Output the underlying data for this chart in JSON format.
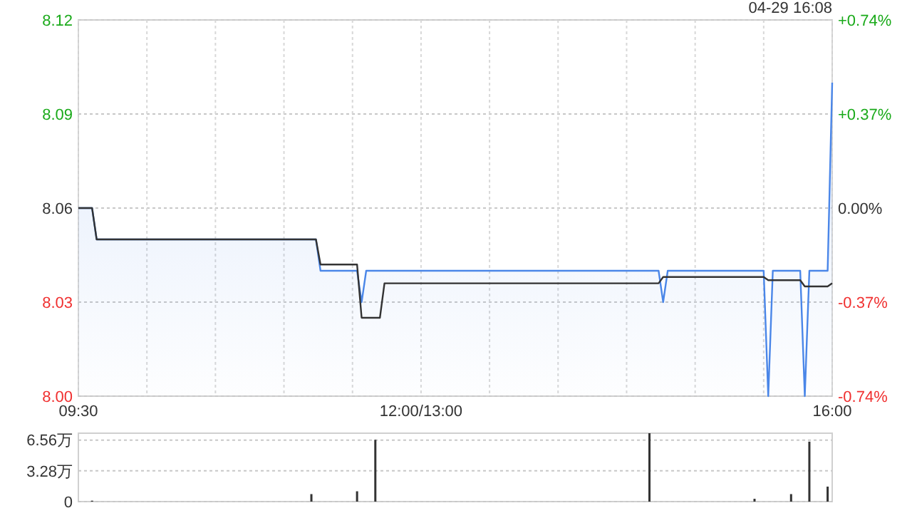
{
  "chart_data": [
    {
      "type": "line",
      "annotations": [
        "04-29 16:08"
      ],
      "grid": true,
      "categories": [
        "09:30",
        null,
        null,
        null,
        null,
        null,
        null,
        null,
        null,
        null,
        null,
        null,
        null,
        null,
        null,
        null,
        null,
        null,
        null,
        null,
        null,
        null,
        null,
        null,
        null,
        null,
        null,
        null,
        null,
        null,
        null,
        null,
        null,
        null,
        null,
        null,
        null,
        null,
        null,
        null,
        null,
        null,
        null,
        null,
        null,
        null,
        null,
        null,
        null,
        null,
        null,
        null,
        null,
        null,
        null,
        null,
        null,
        null,
        null,
        null,
        null,
        null,
        null,
        null,
        null,
        null,
        null,
        null,
        null,
        null,
        null,
        null,
        null,
        null,
        null,
        "12:00/13:00",
        null,
        null,
        null,
        null,
        null,
        null,
        null,
        null,
        null,
        null,
        null,
        null,
        null,
        null,
        null,
        null,
        null,
        null,
        null,
        null,
        null,
        null,
        null,
        null,
        null,
        null,
        null,
        null,
        null,
        null,
        null,
        null,
        null,
        null,
        null,
        null,
        null,
        null,
        null,
        null,
        null,
        null,
        null,
        null,
        null,
        null,
        null,
        null,
        null,
        null,
        null,
        null,
        null,
        null,
        null,
        null,
        null,
        null,
        null,
        null,
        null,
        null,
        null,
        null,
        null,
        null,
        null,
        null,
        null,
        null,
        null,
        null,
        null,
        null,
        null,
        null,
        null,
        null,
        null,
        null,
        null,
        null,
        null,
        null,
        null,
        null,
        null,
        null,
        null,
        "16:00"
      ],
      "ylim": [
        8.0,
        8.12
      ],
      "yticks": [
        {
          "value": 8.0,
          "label": "8.00"
        },
        8.03,
        8.06,
        8.09,
        8.12
      ],
      "y2lim": [
        -0.74,
        0.74
      ],
      "y2ticks": [
        {
          "value": -0.74,
          "label": "-0.74%"
        },
        {
          "value": -0.37,
          "label": "-0.37%"
        },
        {
          "value": 0,
          "label": "0.00%"
        },
        {
          "value": 0.37,
          "label": "+0.37%"
        },
        {
          "value": 0.74,
          "label": "+0.74%"
        }
      ],
      "series": [
        {
          "type": "area",
          "color": "#4a86e8",
          "values": [
            8.06,
            8.06,
            8.06,
            8.06,
            8.05,
            8.05,
            8.05,
            8.05,
            8.05,
            8.05,
            8.05,
            8.05,
            8.05,
            8.05,
            8.05,
            8.05,
            8.05,
            8.05,
            8.05,
            8.05,
            8.05,
            8.05,
            8.05,
            8.05,
            8.05,
            8.05,
            8.05,
            8.05,
            8.05,
            8.05,
            8.05,
            8.05,
            8.05,
            8.05,
            8.05,
            8.05,
            8.05,
            8.05,
            8.05,
            8.05,
            8.05,
            8.05,
            8.05,
            8.05,
            8.05,
            8.05,
            8.05,
            8.05,
            8.05,
            8.05,
            8.05,
            8.05,
            8.05,
            8.04,
            8.04,
            8.04,
            8.04,
            8.04,
            8.04,
            8.04,
            8.04,
            8.04,
            8.03,
            8.04,
            8.04,
            8.04,
            8.04,
            8.04,
            8.04,
            8.04,
            8.04,
            8.04,
            8.04,
            8.04,
            8.04,
            8.04,
            8.04,
            8.04,
            8.04,
            8.04,
            8.04,
            8.04,
            8.04,
            8.04,
            8.04,
            8.04,
            8.04,
            8.04,
            8.04,
            8.04,
            8.04,
            8.04,
            8.04,
            8.04,
            8.04,
            8.04,
            8.04,
            8.04,
            8.04,
            8.04,
            8.04,
            8.04,
            8.04,
            8.04,
            8.04,
            8.04,
            8.04,
            8.04,
            8.04,
            8.04,
            8.04,
            8.04,
            8.04,
            8.04,
            8.04,
            8.04,
            8.04,
            8.04,
            8.04,
            8.04,
            8.04,
            8.04,
            8.04,
            8.04,
            8.04,
            8.04,
            8.04,
            8.04,
            8.03,
            8.04,
            8.04,
            8.04,
            8.04,
            8.04,
            8.04,
            8.04,
            8.04,
            8.04,
            8.04,
            8.04,
            8.04,
            8.04,
            8.04,
            8.04,
            8.04,
            8.04,
            8.04,
            8.04,
            8.04,
            8.04,
            8.04,
            8.0,
            8.04,
            8.04,
            8.04,
            8.04,
            8.04,
            8.04,
            8.04,
            8.0,
            8.04,
            8.04,
            8.04,
            8.04,
            8.04,
            8.1
          ]
        },
        {
          "color": "#333333",
          "values": [
            8.06,
            8.06,
            8.06,
            8.06,
            8.05,
            8.05,
            8.05,
            8.05,
            8.05,
            8.05,
            8.05,
            8.05,
            8.05,
            8.05,
            8.05,
            8.05,
            8.05,
            8.05,
            8.05,
            8.05,
            8.05,
            8.05,
            8.05,
            8.05,
            8.05,
            8.05,
            8.05,
            8.05,
            8.05,
            8.05,
            8.05,
            8.05,
            8.05,
            8.05,
            8.05,
            8.05,
            8.05,
            8.05,
            8.05,
            8.05,
            8.05,
            8.05,
            8.05,
            8.05,
            8.05,
            8.05,
            8.05,
            8.05,
            8.05,
            8.05,
            8.05,
            8.05,
            8.05,
            8.042,
            8.042,
            8.042,
            8.042,
            8.042,
            8.042,
            8.042,
            8.042,
            8.042,
            8.025,
            8.025,
            8.025,
            8.025,
            8.025,
            8.036,
            8.036,
            8.036,
            8.036,
            8.036,
            8.036,
            8.036,
            8.036,
            8.036,
            8.036,
            8.036,
            8.036,
            8.036,
            8.036,
            8.036,
            8.036,
            8.036,
            8.036,
            8.036,
            8.036,
            8.036,
            8.036,
            8.036,
            8.036,
            8.036,
            8.036,
            8.036,
            8.036,
            8.036,
            8.036,
            8.036,
            8.036,
            8.036,
            8.036,
            8.036,
            8.036,
            8.036,
            8.036,
            8.036,
            8.036,
            8.036,
            8.036,
            8.036,
            8.036,
            8.036,
            8.036,
            8.036,
            8.036,
            8.036,
            8.036,
            8.036,
            8.036,
            8.036,
            8.036,
            8.036,
            8.036,
            8.036,
            8.036,
            8.036,
            8.036,
            8.036,
            8.038,
            8.038,
            8.038,
            8.038,
            8.038,
            8.038,
            8.038,
            8.038,
            8.038,
            8.038,
            8.038,
            8.038,
            8.038,
            8.038,
            8.038,
            8.038,
            8.038,
            8.038,
            8.038,
            8.038,
            8.038,
            8.038,
            8.038,
            8.037,
            8.037,
            8.037,
            8.037,
            8.037,
            8.037,
            8.037,
            8.037,
            8.035,
            8.035,
            8.035,
            8.035,
            8.035,
            8.035,
            8.036
          ]
        }
      ]
    },
    {
      "type": "bar",
      "grid": "y",
      "tick_labels": "y",
      "color": "#333333",
      "categories": [
        null,
        null,
        null,
        null,
        null,
        null,
        null,
        null,
        null,
        null,
        null,
        null,
        null,
        null,
        null,
        null,
        null,
        null,
        null,
        null,
        null,
        null,
        null,
        null,
        null,
        null,
        null,
        null,
        null,
        null,
        null,
        null,
        null,
        null,
        null,
        null,
        null,
        null,
        null,
        null,
        null,
        null,
        null,
        null,
        null,
        null,
        null,
        null,
        null,
        null,
        null,
        null,
        null,
        null,
        null,
        null,
        null,
        null,
        null,
        null,
        null,
        null,
        null,
        null,
        null,
        null,
        null,
        null,
        null,
        null,
        null,
        null,
        null,
        null,
        null,
        null,
        null,
        null,
        null,
        null,
        null,
        null,
        null,
        null,
        null,
        null,
        null,
        null,
        null,
        null,
        null,
        null,
        null,
        null,
        null,
        null,
        null,
        null,
        null,
        null,
        null,
        null,
        null,
        null,
        null,
        null,
        null,
        null,
        null,
        null,
        null,
        null,
        null,
        null,
        null,
        null,
        null,
        null,
        null,
        null,
        null,
        null,
        null,
        null,
        null,
        null,
        null,
        null,
        null,
        null,
        null,
        null,
        null,
        null,
        null,
        null,
        null,
        null,
        null,
        null,
        null,
        null,
        null,
        null,
        null,
        null,
        null,
        null,
        null,
        null,
        null,
        null,
        null,
        null,
        null,
        null,
        null,
        null,
        null,
        null,
        null,
        null,
        null,
        null,
        null,
        null
      ],
      "values": [
        null,
        null,
        null,
        0.1,
        null,
        null,
        null,
        null,
        null,
        null,
        null,
        null,
        null,
        null,
        null,
        null,
        null,
        null,
        null,
        null,
        null,
        null,
        null,
        null,
        null,
        null,
        null,
        null,
        null,
        null,
        null,
        null,
        null,
        null,
        null,
        null,
        null,
        null,
        null,
        null,
        null,
        null,
        null,
        null,
        null,
        null,
        null,
        null,
        null,
        null,
        null,
        0.8,
        null,
        null,
        null,
        null,
        null,
        null,
        null,
        null,
        null,
        1.1,
        null,
        null,
        null,
        6.6,
        null,
        null,
        null,
        null,
        null,
        null,
        null,
        null,
        null,
        null,
        null,
        null,
        null,
        null,
        null,
        null,
        null,
        null,
        null,
        null,
        null,
        null,
        null,
        null,
        null,
        null,
        null,
        null,
        null,
        null,
        null,
        null,
        null,
        null,
        null,
        null,
        null,
        null,
        null,
        null,
        null,
        null,
        null,
        null,
        null,
        null,
        null,
        null,
        null,
        null,
        null,
        null,
        null,
        null,
        null,
        null,
        null,
        null,
        null,
        7.3,
        null,
        null,
        null,
        null,
        null,
        null,
        null,
        null,
        null,
        null,
        null,
        null,
        null,
        null,
        null,
        null,
        null,
        null,
        null,
        null,
        null,
        null,
        0.3,
        null,
        null,
        null,
        null,
        null,
        null,
        null,
        0.8,
        null,
        null,
        null,
        6.4,
        null,
        null,
        null,
        1.6,
        null
      ],
      "ylim": [
        0,
        7.3
      ],
      "yticks": [
        0,
        {
          "value": 3.28,
          "label": "3.28万"
        },
        {
          "value": 6.56,
          "label": "6.56万"
        }
      ]
    }
  ]
}
